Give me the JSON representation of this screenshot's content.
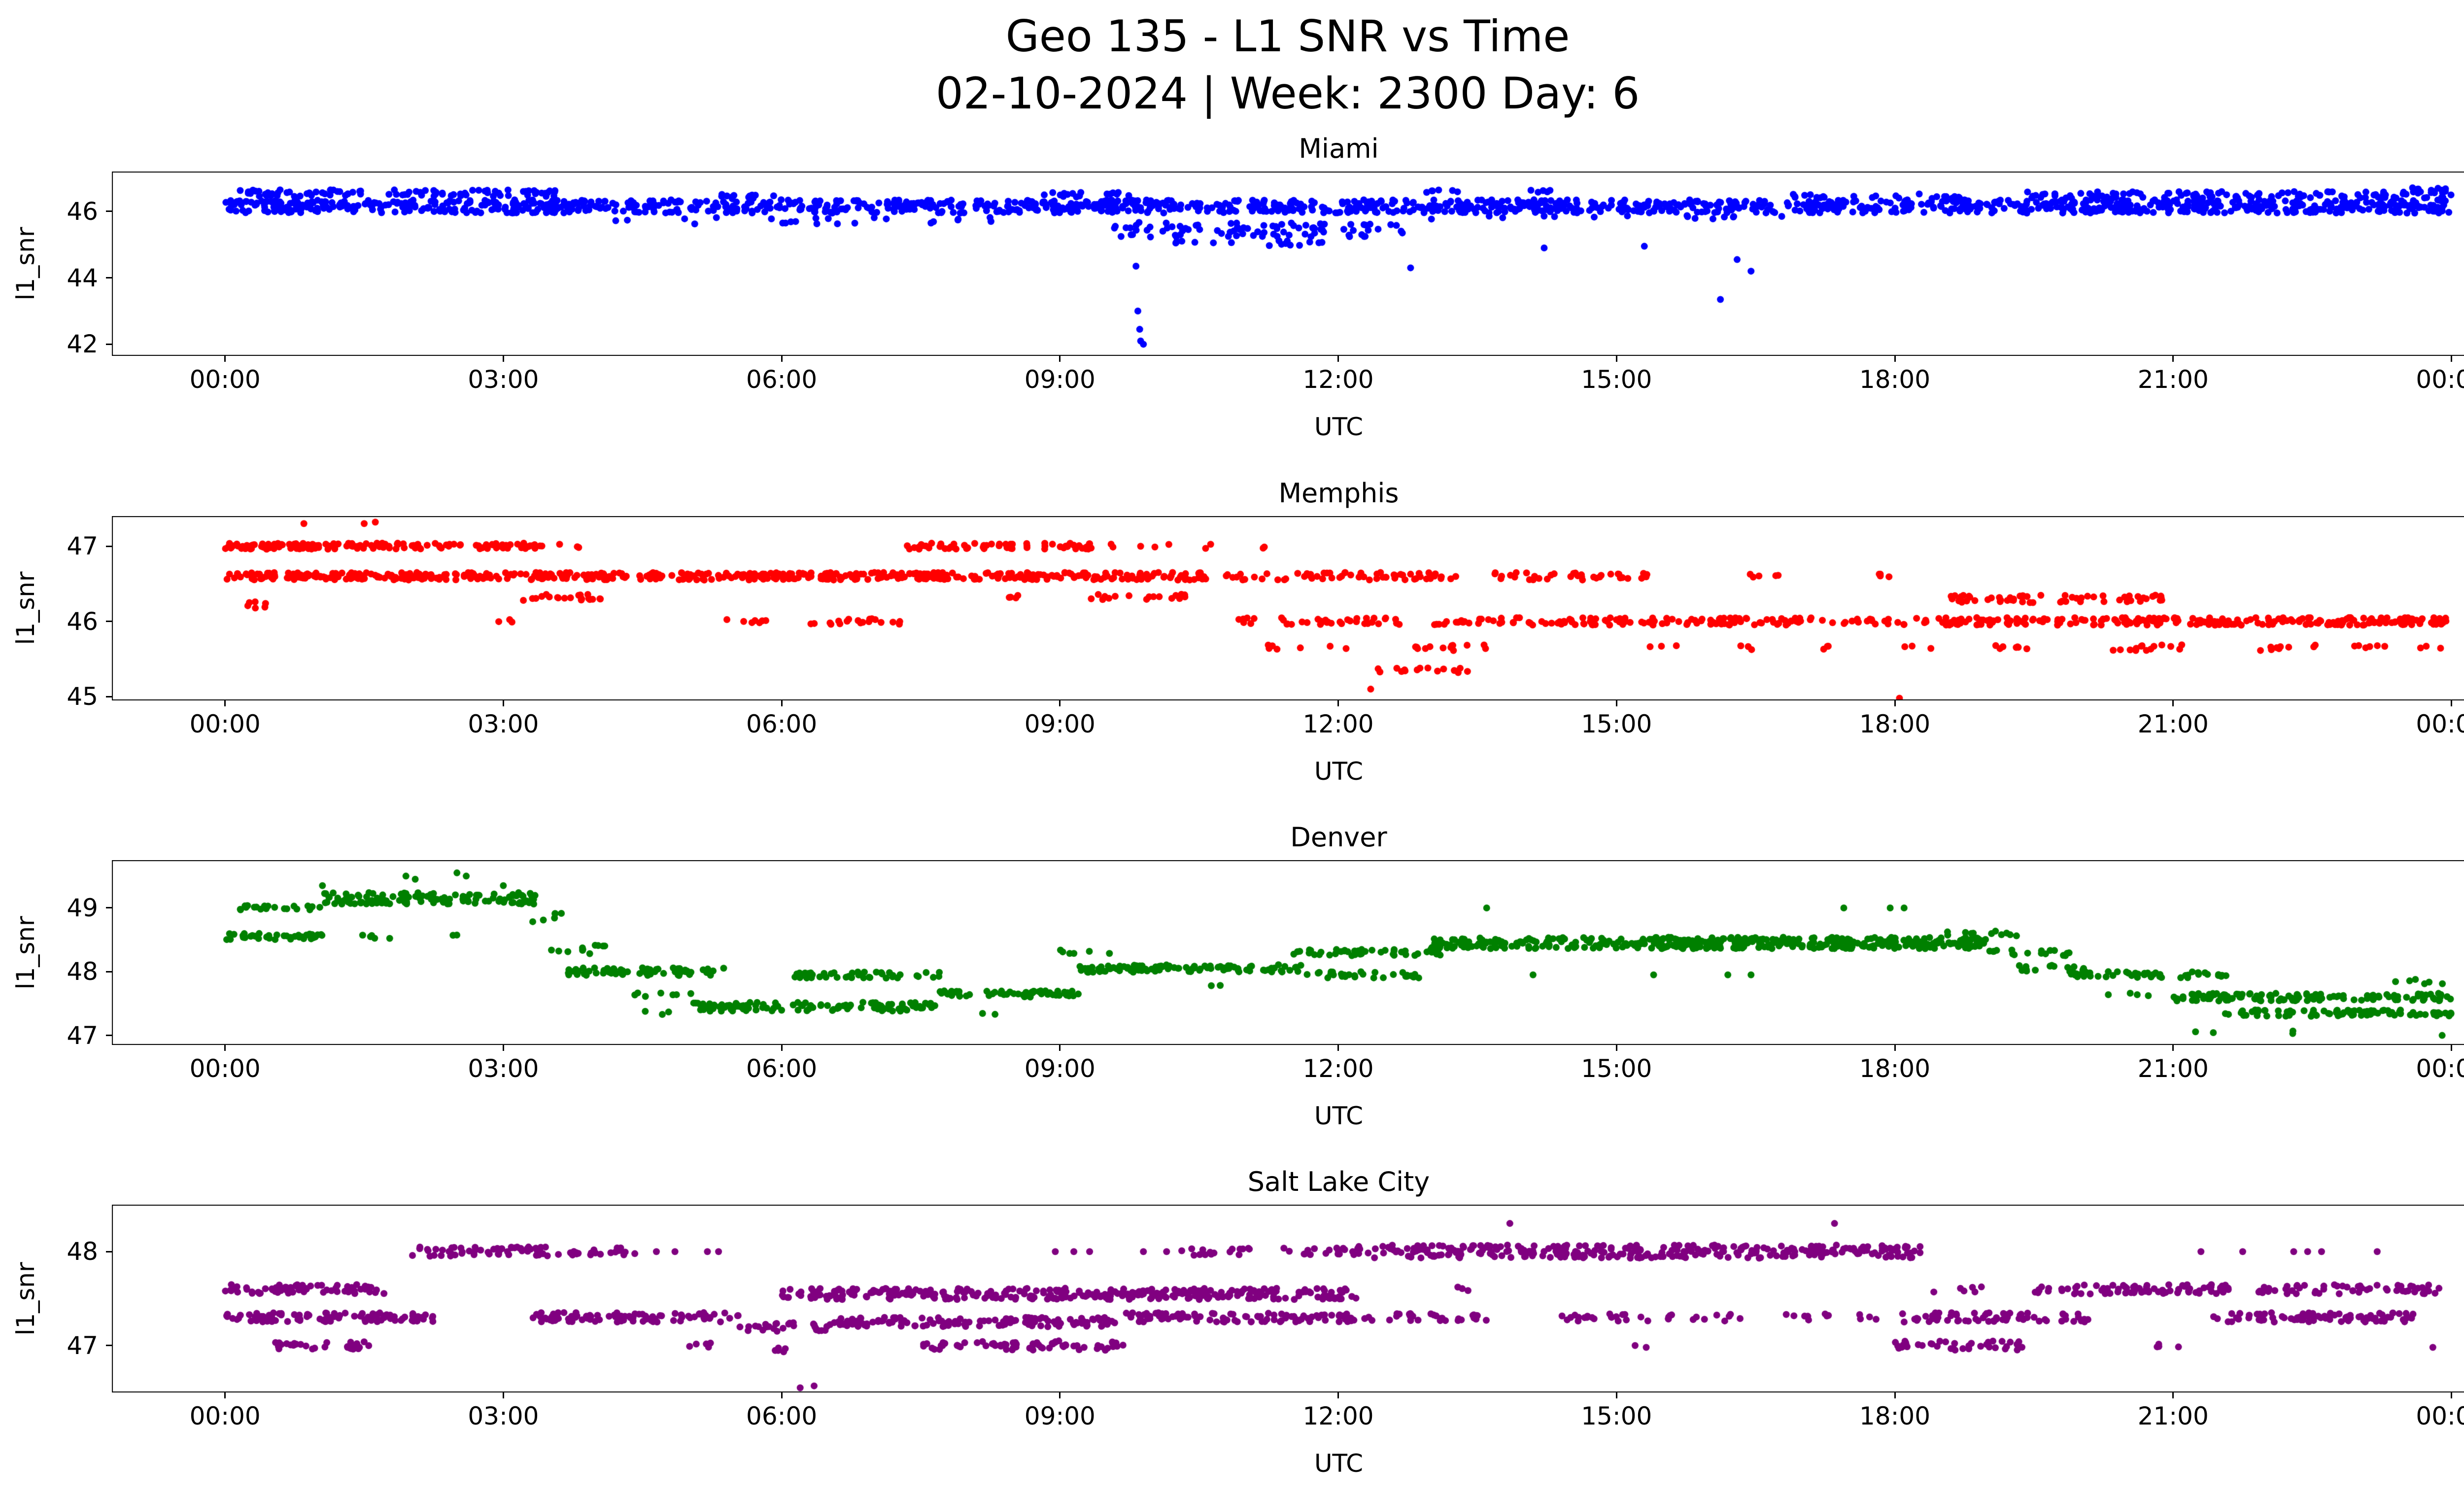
{
  "header": {
    "title": "Geo 135 - L1 SNR vs Time",
    "subtitle": "02-10-2024 | Week: 2300 Day: 6"
  },
  "chart_data": [
    {
      "type": "scatter",
      "title": "Miami",
      "color": "#0000ff",
      "ylabel": "l1_snr",
      "xlabel": "UTC",
      "xlim": [
        -1.22,
        25.23
      ],
      "ylim": [
        41.65,
        47.2
      ],
      "yticks": [
        46,
        44,
        42
      ],
      "xticks": {
        "hours": [
          0,
          3,
          6,
          9,
          12,
          15,
          18,
          21,
          24
        ],
        "labels": [
          "00:00",
          "03:00",
          "06:00",
          "09:00",
          "12:00",
          "15:00",
          "18:00",
          "21:00",
          "00:00"
        ]
      },
      "segments": [
        [
          0,
          24,
          46.15,
          60,
          0.2
        ],
        [
          0.1,
          3.6,
          46.55,
          26,
          0.1
        ],
        [
          5.3,
          6.1,
          46.45,
          16,
          0.07
        ],
        [
          8.8,
          9.8,
          46.5,
          16,
          0.08
        ],
        [
          12.9,
          13.3,
          46.6,
          14,
          0.06
        ],
        [
          13.95,
          14.35,
          46.6,
          12,
          0.06
        ],
        [
          16.9,
          18.7,
          46.45,
          14,
          0.08
        ],
        [
          19.4,
          24,
          46.5,
          24,
          0.1
        ],
        [
          23.5,
          24,
          46.65,
          20,
          0.07
        ],
        [
          9.4,
          12.7,
          45.45,
          26,
          0.22
        ],
        [
          10.1,
          11.9,
          45.05,
          9,
          0.08
        ],
        [
          3.8,
          8.3,
          45.72,
          5,
          0.1
        ],
        [
          13.0,
          16.8,
          45.8,
          4,
          0.08
        ]
      ],
      "outliers": [
        [
          9.82,
          44.35
        ],
        [
          9.84,
          43.0
        ],
        [
          9.86,
          42.45
        ],
        [
          9.87,
          42.1
        ],
        [
          9.9,
          42.0
        ],
        [
          12.78,
          44.3
        ],
        [
          14.22,
          44.9
        ],
        [
          15.3,
          44.95
        ],
        [
          16.12,
          43.35
        ],
        [
          16.3,
          44.55
        ],
        [
          16.45,
          44.2
        ]
      ]
    },
    {
      "type": "scatter",
      "title": "Memphis",
      "color": "#ff0000",
      "ylabel": "l1_snr",
      "xlabel": "UTC",
      "xlim": [
        -1.22,
        25.23
      ],
      "ylim": [
        44.95,
        47.4
      ],
      "yticks": [
        47,
        46,
        45
      ],
      "xticks": {
        "hours": [
          0,
          3,
          6,
          9,
          12,
          15,
          18,
          21,
          24
        ],
        "labels": [
          "00:00",
          "03:00",
          "06:00",
          "09:00",
          "12:00",
          "15:00",
          "18:00",
          "21:00",
          "00:00"
        ]
      },
      "segments": [
        [
          0,
          3.35,
          47.0,
          45,
          0.04
        ],
        [
          0,
          10.6,
          46.6,
          50,
          0.05
        ],
        [
          0.15,
          0.55,
          46.22,
          14,
          0.05
        ],
        [
          2.95,
          3.2,
          46.0,
          12,
          0.03
        ],
        [
          3.2,
          4.05,
          46.32,
          24,
          0.04
        ],
        [
          3.3,
          4.0,
          47.0,
          7,
          0.03
        ],
        [
          5.35,
          5.85,
          46.0,
          14,
          0.03
        ],
        [
          6.25,
          7.3,
          46.0,
          18,
          0.04
        ],
        [
          7.35,
          9.4,
          47.0,
          30,
          0.04
        ],
        [
          9.55,
          10.2,
          47.0,
          8,
          0.03
        ],
        [
          10.45,
          10.65,
          47.0,
          10,
          0.03
        ],
        [
          11.05,
          11.3,
          47.0,
          8,
          0.03
        ],
        [
          8.25,
          8.6,
          46.32,
          12,
          0.03
        ],
        [
          9.3,
          10.4,
          46.32,
          16,
          0.04
        ],
        [
          10.7,
          13.3,
          46.6,
          24,
          0.05
        ],
        [
          10.9,
          12.8,
          46.0,
          20,
          0.05
        ],
        [
          11.15,
          11.6,
          45.65,
          12,
          0.04
        ],
        [
          11.9,
          12.15,
          45.65,
          8,
          0.03
        ],
        [
          12.2,
          12.5,
          45.35,
          8,
          0.03
        ],
        [
          12.55,
          13.5,
          45.35,
          14,
          0.04
        ],
        [
          12.7,
          13.6,
          45.65,
          14,
          0.04
        ],
        [
          13.0,
          14.3,
          46.0,
          24,
          0.05
        ],
        [
          13.55,
          14.65,
          46.6,
          20,
          0.05
        ],
        [
          14.35,
          17.1,
          46.0,
          38,
          0.05
        ],
        [
          14.75,
          15.55,
          46.6,
          18,
          0.04
        ],
        [
          15.35,
          15.65,
          45.65,
          10,
          0.03
        ],
        [
          16.3,
          16.65,
          45.65,
          10,
          0.03
        ],
        [
          16.35,
          16.75,
          46.6,
          12,
          0.03
        ],
        [
          17.15,
          17.45,
          45.65,
          10,
          0.03
        ],
        [
          17.55,
          17.95,
          46.62,
          10,
          0.03
        ],
        [
          17.2,
          18.35,
          46.0,
          20,
          0.05
        ],
        [
          18.05,
          18.4,
          45.65,
          10,
          0.03
        ],
        [
          18.45,
          24,
          46.0,
          44,
          0.05
        ],
        [
          18.5,
          20.9,
          46.3,
          24,
          0.05
        ],
        [
          19.05,
          19.6,
          45.65,
          12,
          0.03
        ],
        [
          20.35,
          21.25,
          45.65,
          16,
          0.04
        ],
        [
          21.9,
          22.55,
          45.65,
          14,
          0.04
        ],
        [
          22.95,
          23.45,
          45.65,
          12,
          0.03
        ],
        [
          23.6,
          23.95,
          45.65,
          10,
          0.03
        ]
      ],
      "outliers": [
        [
          0.85,
          47.3
        ],
        [
          1.5,
          47.3
        ],
        [
          1.62,
          47.32
        ],
        [
          12.35,
          45.1
        ],
        [
          18.05,
          44.98
        ]
      ]
    },
    {
      "type": "scatter",
      "title": "Denver",
      "color": "#008000",
      "ylabel": "l1_snr",
      "xlabel": "UTC",
      "xlim": [
        -1.22,
        25.23
      ],
      "ylim": [
        46.85,
        49.75
      ],
      "yticks": [
        49,
        48,
        47
      ],
      "xticks": {
        "hours": [
          0,
          3,
          6,
          9,
          12,
          15,
          18,
          21,
          24
        ],
        "labels": [
          "00:00",
          "03:00",
          "06:00",
          "09:00",
          "12:00",
          "15:00",
          "18:00",
          "21:00",
          "00:00"
        ]
      },
      "segments": [
        [
          0,
          1.05,
          48.55,
          35,
          0.05
        ],
        [
          0.15,
          1.05,
          49.0,
          24,
          0.04
        ],
        [
          1.05,
          3.35,
          49.15,
          55,
          0.09
        ],
        [
          1.45,
          2.1,
          48.55,
          7,
          0.03
        ],
        [
          2.2,
          2.5,
          48.55,
          7,
          0.03
        ],
        [
          3.3,
          3.65,
          48.85,
          16,
          0.07
        ],
        [
          3.5,
          4.1,
          48.35,
          18,
          0.07
        ],
        [
          3.7,
          5.4,
          48.0,
          38,
          0.06
        ],
        [
          4.35,
          5.1,
          47.65,
          9,
          0.04
        ],
        [
          4.5,
          4.95,
          47.35,
          6,
          0.03
        ],
        [
          5.0,
          7.7,
          47.45,
          40,
          0.07
        ],
        [
          6.1,
          7.7,
          47.95,
          28,
          0.05
        ],
        [
          7.7,
          9.2,
          47.65,
          38,
          0.05
        ],
        [
          8.15,
          8.45,
          47.35,
          8,
          0.03
        ],
        [
          9.0,
          9.6,
          48.3,
          10,
          0.04
        ],
        [
          9.2,
          11.6,
          48.05,
          42,
          0.06
        ],
        [
          10.5,
          10.8,
          47.8,
          6,
          0.03
        ],
        [
          11.5,
          13.1,
          48.3,
          28,
          0.05
        ],
        [
          11.6,
          12.95,
          47.95,
          22,
          0.05
        ],
        [
          13.0,
          19.0,
          48.45,
          70,
          0.09
        ],
        [
          18.55,
          19.35,
          48.6,
          14,
          0.04
        ],
        [
          19.0,
          19.95,
          48.3,
          18,
          0.05
        ],
        [
          19.3,
          20.15,
          48.05,
          18,
          0.05
        ],
        [
          19.9,
          21.6,
          47.95,
          28,
          0.05
        ],
        [
          20.3,
          20.75,
          47.65,
          8,
          0.03
        ],
        [
          21.0,
          24,
          47.6,
          42,
          0.06
        ],
        [
          21.5,
          24,
          47.35,
          32,
          0.05
        ],
        [
          21.2,
          21.5,
          47.05,
          6,
          0.03
        ],
        [
          22.1,
          22.45,
          47.05,
          6,
          0.03
        ],
        [
          23.3,
          23.95,
          47.85,
          9,
          0.04
        ]
      ],
      "outliers": [
        [
          1.05,
          49.35
        ],
        [
          1.95,
          49.5
        ],
        [
          2.05,
          49.45
        ],
        [
          2.5,
          49.55
        ],
        [
          2.6,
          49.5
        ],
        [
          3.0,
          49.35
        ],
        [
          13.6,
          49.0
        ],
        [
          17.45,
          49.0
        ],
        [
          17.95,
          49.0
        ],
        [
          18.1,
          49.0
        ],
        [
          14.1,
          47.95
        ],
        [
          15.4,
          47.95
        ],
        [
          16.2,
          47.95
        ],
        [
          16.45,
          47.95
        ],
        [
          23.9,
          47.0
        ]
      ]
    },
    {
      "type": "scatter",
      "title": "Salt Lake City",
      "color": "#800080",
      "ylabel": "l1_snr",
      "xlabel": "UTC",
      "xlim": [
        -1.22,
        25.23
      ],
      "ylim": [
        46.5,
        48.5
      ],
      "yticks": [
        48,
        47
      ],
      "xticks": {
        "hours": [
          0,
          3,
          6,
          9,
          12,
          15,
          18,
          21,
          24
        ],
        "labels": [
          "00:00",
          "03:00",
          "06:00",
          "09:00",
          "12:00",
          "15:00",
          "18:00",
          "21:00",
          "00:00"
        ]
      },
      "segments": [
        [
          0,
          1.75,
          47.6,
          38,
          0.05
        ],
        [
          0,
          2.25,
          47.3,
          42,
          0.05
        ],
        [
          0.45,
          1.55,
          47.0,
          28,
          0.04
        ],
        [
          2.0,
          3.5,
          48.0,
          38,
          0.05
        ],
        [
          3.3,
          5.55,
          47.3,
          38,
          0.05
        ],
        [
          3.55,
          4.45,
          48.0,
          24,
          0.04
        ],
        [
          5.0,
          5.5,
          47.0,
          10,
          0.04
        ],
        [
          5.5,
          6.6,
          47.2,
          28,
          0.05
        ],
        [
          5.6,
          6.05,
          46.95,
          10,
          0.03
        ],
        [
          6.0,
          12.2,
          47.55,
          52,
          0.06
        ],
        [
          6.6,
          9.6,
          47.25,
          42,
          0.05
        ],
        [
          7.5,
          9.7,
          47.0,
          32,
          0.05
        ],
        [
          10.3,
          11.1,
          48.0,
          20,
          0.04
        ],
        [
          11.4,
          12.3,
          48.0,
          20,
          0.04
        ],
        [
          9.7,
          12.35,
          47.3,
          38,
          0.05
        ],
        [
          12.2,
          18.3,
          48.0,
          52,
          0.07
        ],
        [
          12.3,
          13.6,
          47.3,
          22,
          0.04
        ],
        [
          13.1,
          13.45,
          47.6,
          8,
          0.03
        ],
        [
          14.4,
          15.6,
          47.3,
          22,
          0.04
        ],
        [
          15.8,
          16.4,
          47.3,
          14,
          0.04
        ],
        [
          16.8,
          17.4,
          47.3,
          14,
          0.04
        ],
        [
          17.6,
          18.3,
          47.3,
          10,
          0.04
        ],
        [
          18.0,
          19.4,
          47.0,
          28,
          0.05
        ],
        [
          18.1,
          20.1,
          47.3,
          32,
          0.05
        ],
        [
          18.4,
          19.0,
          47.6,
          10,
          0.04
        ],
        [
          19.5,
          21.6,
          47.6,
          38,
          0.05
        ],
        [
          20.8,
          21.2,
          47.0,
          10,
          0.03
        ],
        [
          21.4,
          23.6,
          47.3,
          38,
          0.05
        ],
        [
          21.9,
          23.9,
          47.6,
          28,
          0.05
        ]
      ],
      "outliers": [
        [
          4.65,
          48.0
        ],
        [
          4.85,
          48.0
        ],
        [
          5.2,
          48.0
        ],
        [
          5.32,
          48.0
        ],
        [
          6.2,
          46.55
        ],
        [
          6.35,
          46.57
        ],
        [
          8.95,
          48.0
        ],
        [
          9.15,
          48.0
        ],
        [
          9.32,
          48.0
        ],
        [
          9.9,
          48.0
        ],
        [
          10.15,
          48.0
        ],
        [
          13.85,
          48.3
        ],
        [
          17.35,
          48.3
        ],
        [
          15.2,
          47.0
        ],
        [
          15.32,
          46.98
        ],
        [
          21.3,
          48.0
        ],
        [
          21.75,
          48.0
        ],
        [
          22.3,
          48.0
        ],
        [
          22.45,
          48.0
        ],
        [
          22.6,
          48.0
        ],
        [
          23.2,
          48.0
        ],
        [
          23.8,
          46.98
        ]
      ]
    }
  ]
}
